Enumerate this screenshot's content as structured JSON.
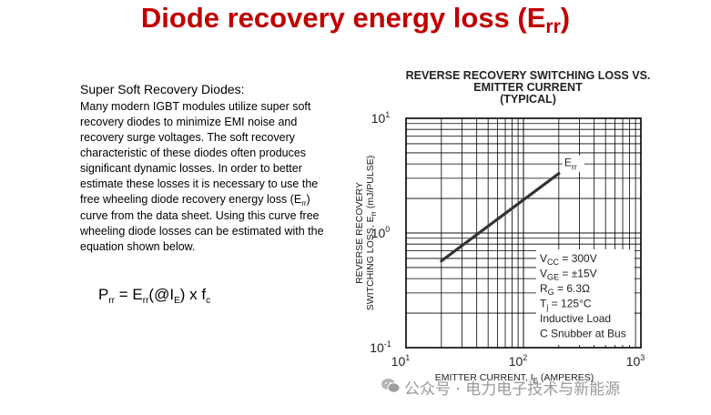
{
  "slide": {
    "title_main": "Diode recovery energy loss (E",
    "title_sub": "rr",
    "title_end": ")"
  },
  "body": {
    "heading": "Super Soft Recovery Diodes:",
    "para_1": "Many modern IGBT modules utilize super soft recovery diodes to minimize EMI noise and recovery surge voltages. The soft recovery characteristic of these diodes often produces significant dynamic losses. In order to better estimate these losses it is necessary to use the free wheeling diode recovery energy loss (E",
    "para_sub": "rr",
    "para_2": ") curve from the data sheet.  Using this curve free wheeling diode losses can be estimated with the equation shown below."
  },
  "formula": {
    "p": "P",
    "p_sub": "rr",
    "eq": " = E",
    "e_sub": "rr",
    "at": "(@I",
    "i_sub": "E",
    "times": ") x f",
    "f_sub": "c"
  },
  "chart_data": {
    "type": "line",
    "title_lines": [
      "REVERSE RECOVERY SWITCHING LOSS VS.",
      "EMITTER CURRENT",
      "(TYPICAL)"
    ],
    "xlabel": "EMITTER CURRENT, I",
    "xlabel_sub": "E",
    "xlabel_unit": " (AMPERES)",
    "ylabel_line1": "REVERSE RECOVERY",
    "ylabel_line2": "SWITCHING LOSS, E",
    "ylabel_sub": "rr",
    "ylabel_unit": " (mJ/PULSE)",
    "x_scale": "log",
    "y_scale": "log",
    "xlim": [
      10,
      1000
    ],
    "ylim": [
      0.1,
      10
    ],
    "x_ticks": [
      {
        "value": 10,
        "base": "10",
        "exp": "1"
      },
      {
        "value": 100,
        "base": "10",
        "exp": "2"
      },
      {
        "value": 1000,
        "base": "10",
        "exp": "3"
      }
    ],
    "y_ticks": [
      {
        "value": 0.1,
        "base": "10",
        "exp": "-1"
      },
      {
        "value": 1,
        "base": "10",
        "exp": "0"
      },
      {
        "value": 10,
        "base": "10",
        "exp": "1"
      }
    ],
    "grid": true,
    "series": [
      {
        "name": "E",
        "name_sub": "rr",
        "x": [
          20,
          200
        ],
        "y": [
          0.57,
          3.3
        ]
      }
    ],
    "conditions": [
      {
        "base": "V",
        "sub": "CC",
        "rest": " = 300V"
      },
      {
        "base": "V",
        "sub": "GE",
        "rest": " = ±15V"
      },
      {
        "base": "R",
        "sub": "G",
        "rest": " = 6.3Ω"
      },
      {
        "base": "T",
        "sub": "j",
        "rest": " = 125°C"
      },
      {
        "base": "Inductive Load",
        "sub": "",
        "rest": ""
      },
      {
        "base": "C Snubber at Bus",
        "sub": "",
        "rest": ""
      }
    ]
  },
  "watermark": {
    "text": "公众号 · 电力电子技术与新能源",
    "icon": "wechat-icon"
  }
}
